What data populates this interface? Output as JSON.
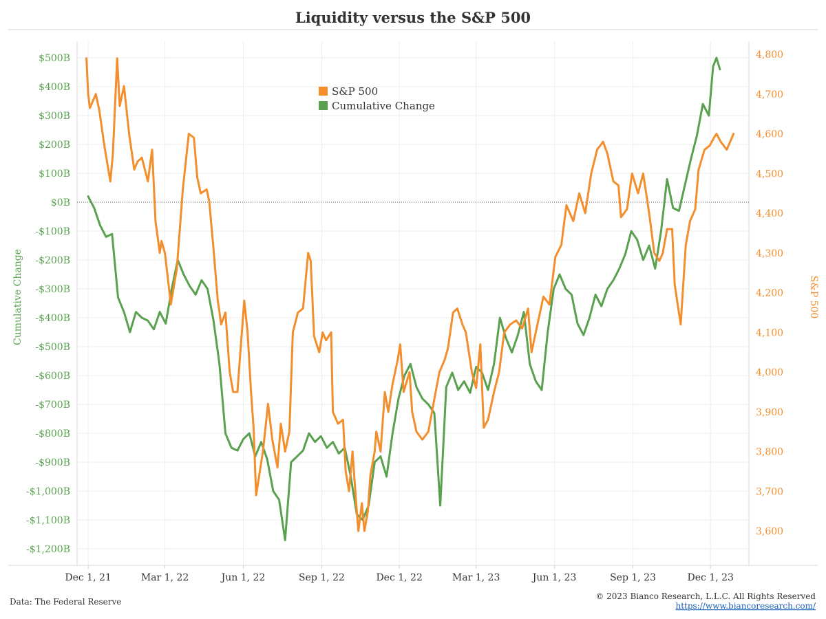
{
  "chart_data": {
    "type": "line",
    "title": "Liquidity versus the S&P 500",
    "left_axis": {
      "label": "Cumulative Change",
      "range": [
        -1200,
        500
      ],
      "ticks": [
        500,
        400,
        300,
        200,
        100,
        0,
        -100,
        -200,
        -300,
        -400,
        -500,
        -600,
        -700,
        -800,
        -900,
        -1000,
        -1100,
        -1200
      ],
      "tick_labels": [
        "$500B",
        "$400B",
        "$300B",
        "$200B",
        "$100B",
        "$0B",
        "-$100B",
        "-$200B",
        "-$300B",
        "-$400B",
        "-$500B",
        "-$600B",
        "-$700B",
        "-$800B",
        "-$900B",
        "-$1,000B",
        "-$1,100B",
        "-$1,200B"
      ],
      "color": "#59a14f"
    },
    "right_axis": {
      "label": "S&P 500",
      "range": [
        3600,
        4800
      ],
      "ticks": [
        4800,
        4700,
        4600,
        4500,
        4400,
        4300,
        4200,
        4100,
        4000,
        3900,
        3800,
        3700,
        3600
      ],
      "tick_labels": [
        "4,800",
        "4,700",
        "4,600",
        "4,500",
        "4,400",
        "4,300",
        "4,200",
        "4,100",
        "4,000",
        "3,900",
        "3,800",
        "3,700",
        "3,600"
      ],
      "color": "#f28e2b"
    },
    "x_axis": {
      "range": [
        "2021-11-18",
        "2024-01-15"
      ],
      "ticks": [
        "2021-12-01",
        "2022-03-01",
        "2022-06-01",
        "2022-09-01",
        "2022-12-01",
        "2023-03-01",
        "2023-06-01",
        "2023-09-01",
        "2023-12-01"
      ],
      "tick_labels": [
        "Dec 1, 21",
        "Mar 1, 22",
        "Jun 1, 22",
        "Sep 1, 22",
        "Dec 1, 22",
        "Mar 1, 23",
        "Jun 1, 23",
        "Sep 1, 23",
        "Dec 1, 23"
      ]
    },
    "zero_line": true,
    "grid": true,
    "legend_position": "top-center",
    "series": [
      {
        "name": "S&P 500",
        "axis": "right",
        "color": "#f28e2b",
        "points": [
          [
            "2021-11-29",
            4790
          ],
          [
            "2021-12-01",
            4700
          ],
          [
            "2021-12-03",
            4665
          ],
          [
            "2021-12-08",
            4690
          ],
          [
            "2021-12-10",
            4700
          ],
          [
            "2021-12-14",
            4660
          ],
          [
            "2021-12-20",
            4570
          ],
          [
            "2021-12-27",
            4480
          ],
          [
            "2021-12-30",
            4550
          ],
          [
            "2022-01-04",
            4790
          ],
          [
            "2022-01-07",
            4670
          ],
          [
            "2022-01-12",
            4720
          ],
          [
            "2022-01-18",
            4600
          ],
          [
            "2022-01-24",
            4510
          ],
          [
            "2022-01-28",
            4530
          ],
          [
            "2022-02-02",
            4540
          ],
          [
            "2022-02-09",
            4480
          ],
          [
            "2022-02-14",
            4560
          ],
          [
            "2022-02-18",
            4380
          ],
          [
            "2022-02-23",
            4300
          ],
          [
            "2022-02-25",
            4330
          ],
          [
            "2022-03-01",
            4300
          ],
          [
            "2022-03-08",
            4170
          ],
          [
            "2022-03-15",
            4260
          ],
          [
            "2022-03-22",
            4460
          ],
          [
            "2022-03-29",
            4600
          ],
          [
            "2022-04-04",
            4590
          ],
          [
            "2022-04-08",
            4490
          ],
          [
            "2022-04-12",
            4450
          ],
          [
            "2022-04-19",
            4460
          ],
          [
            "2022-04-22",
            4430
          ],
          [
            "2022-04-27",
            4310
          ],
          [
            "2022-05-02",
            4180
          ],
          [
            "2022-05-06",
            4120
          ],
          [
            "2022-05-11",
            4150
          ],
          [
            "2022-05-16",
            4000
          ],
          [
            "2022-05-20",
            3950
          ],
          [
            "2022-05-25",
            3950
          ],
          [
            "2022-06-02",
            4180
          ],
          [
            "2022-06-06",
            4100
          ],
          [
            "2022-06-10",
            3950
          ],
          [
            "2022-06-13",
            3860
          ],
          [
            "2022-06-16",
            3690
          ],
          [
            "2022-06-24",
            3800
          ],
          [
            "2022-06-30",
            3920
          ],
          [
            "2022-07-05",
            3830
          ],
          [
            "2022-07-11",
            3760
          ],
          [
            "2022-07-15",
            3870
          ],
          [
            "2022-07-20",
            3800
          ],
          [
            "2022-07-25",
            3850
          ],
          [
            "2022-07-29",
            4100
          ],
          [
            "2022-08-04",
            4150
          ],
          [
            "2022-08-10",
            4160
          ],
          [
            "2022-08-16",
            4300
          ],
          [
            "2022-08-19",
            4280
          ],
          [
            "2022-08-23",
            4090
          ],
          [
            "2022-08-29",
            4050
          ],
          [
            "2022-09-02",
            4100
          ],
          [
            "2022-09-06",
            4080
          ],
          [
            "2022-09-12",
            4100
          ],
          [
            "2022-09-14",
            3900
          ],
          [
            "2022-09-20",
            3870
          ],
          [
            "2022-09-26",
            3880
          ],
          [
            "2022-09-29",
            3750
          ],
          [
            "2022-10-03",
            3700
          ],
          [
            "2022-10-07",
            3800
          ],
          [
            "2022-10-12",
            3650
          ],
          [
            "2022-10-14",
            3600
          ],
          [
            "2022-10-18",
            3670
          ],
          [
            "2022-10-21",
            3600
          ],
          [
            "2022-10-25",
            3650
          ],
          [
            "2022-10-28",
            3740
          ],
          [
            "2022-11-02",
            3800
          ],
          [
            "2022-11-04",
            3850
          ],
          [
            "2022-11-09",
            3800
          ],
          [
            "2022-11-14",
            3950
          ],
          [
            "2022-11-18",
            3900
          ],
          [
            "2022-11-23",
            3970
          ],
          [
            "2022-11-29",
            4030
          ],
          [
            "2022-12-02",
            4070
          ],
          [
            "2022-12-06",
            3950
          ],
          [
            "2022-12-13",
            4000
          ],
          [
            "2022-12-16",
            3900
          ],
          [
            "2022-12-21",
            3850
          ],
          [
            "2022-12-28",
            3830
          ],
          [
            "2023-01-04",
            3850
          ],
          [
            "2023-01-10",
            3920
          ],
          [
            "2023-01-17",
            4000
          ],
          [
            "2023-01-23",
            4030
          ],
          [
            "2023-01-27",
            4060
          ],
          [
            "2023-02-02",
            4150
          ],
          [
            "2023-02-07",
            4160
          ],
          [
            "2023-02-13",
            4120
          ],
          [
            "2023-02-17",
            4100
          ],
          [
            "2023-02-24",
            4000
          ],
          [
            "2023-03-01",
            3960
          ],
          [
            "2023-03-06",
            4070
          ],
          [
            "2023-03-10",
            3860
          ],
          [
            "2023-03-15",
            3880
          ],
          [
            "2023-03-22",
            3950
          ],
          [
            "2023-03-28",
            4000
          ],
          [
            "2023-04-03",
            4100
          ],
          [
            "2023-04-10",
            4120
          ],
          [
            "2023-04-17",
            4130
          ],
          [
            "2023-04-24",
            4110
          ],
          [
            "2023-05-01",
            4160
          ],
          [
            "2023-05-05",
            4050
          ],
          [
            "2023-05-12",
            4120
          ],
          [
            "2023-05-19",
            4190
          ],
          [
            "2023-05-26",
            4170
          ],
          [
            "2023-06-02",
            4290
          ],
          [
            "2023-06-09",
            4320
          ],
          [
            "2023-06-15",
            4420
          ],
          [
            "2023-06-23",
            4380
          ],
          [
            "2023-06-30",
            4450
          ],
          [
            "2023-07-07",
            4400
          ],
          [
            "2023-07-14",
            4500
          ],
          [
            "2023-07-21",
            4560
          ],
          [
            "2023-07-28",
            4580
          ],
          [
            "2023-08-02",
            4550
          ],
          [
            "2023-08-09",
            4480
          ],
          [
            "2023-08-15",
            4470
          ],
          [
            "2023-08-18",
            4390
          ],
          [
            "2023-08-25",
            4410
          ],
          [
            "2023-08-31",
            4500
          ],
          [
            "2023-09-07",
            4450
          ],
          [
            "2023-09-13",
            4500
          ],
          [
            "2023-09-20",
            4400
          ],
          [
            "2023-09-26",
            4300
          ],
          [
            "2023-10-02",
            4280
          ],
          [
            "2023-10-06",
            4300
          ],
          [
            "2023-10-11",
            4360
          ],
          [
            "2023-10-17",
            4360
          ],
          [
            "2023-10-20",
            4220
          ],
          [
            "2023-10-27",
            4120
          ],
          [
            "2023-11-02",
            4320
          ],
          [
            "2023-11-07",
            4380
          ],
          [
            "2023-11-13",
            4410
          ],
          [
            "2023-11-17",
            4510
          ],
          [
            "2023-11-24",
            4560
          ],
          [
            "2023-11-30",
            4570
          ],
          [
            "2023-12-05",
            4590
          ],
          [
            "2023-12-08",
            4600
          ],
          [
            "2023-12-13",
            4580
          ],
          [
            "2023-12-20",
            4560
          ],
          [
            "2023-12-28",
            4600
          ]
        ]
      },
      {
        "name": "Cumulative Change",
        "axis": "left",
        "color": "#59a14f",
        "points": [
          [
            "2021-12-01",
            20
          ],
          [
            "2021-12-08",
            -20
          ],
          [
            "2021-12-15",
            -80
          ],
          [
            "2021-12-22",
            -120
          ],
          [
            "2021-12-29",
            -110
          ],
          [
            "2022-01-05",
            -330
          ],
          [
            "2022-01-12",
            -380
          ],
          [
            "2022-01-19",
            -450
          ],
          [
            "2022-01-26",
            -380
          ],
          [
            "2022-02-02",
            -400
          ],
          [
            "2022-02-09",
            -410
          ],
          [
            "2022-02-16",
            -440
          ],
          [
            "2022-02-23",
            -380
          ],
          [
            "2022-03-02",
            -420
          ],
          [
            "2022-03-09",
            -300
          ],
          [
            "2022-03-16",
            -200
          ],
          [
            "2022-03-23",
            -250
          ],
          [
            "2022-03-30",
            -290
          ],
          [
            "2022-04-06",
            -320
          ],
          [
            "2022-04-13",
            -270
          ],
          [
            "2022-04-20",
            -300
          ],
          [
            "2022-04-27",
            -410
          ],
          [
            "2022-05-04",
            -560
          ],
          [
            "2022-05-11",
            -800
          ],
          [
            "2022-05-18",
            -850
          ],
          [
            "2022-05-25",
            -860
          ],
          [
            "2022-06-01",
            -820
          ],
          [
            "2022-06-08",
            -800
          ],
          [
            "2022-06-15",
            -880
          ],
          [
            "2022-06-22",
            -830
          ],
          [
            "2022-06-29",
            -890
          ],
          [
            "2022-07-06",
            -1000
          ],
          [
            "2022-07-13",
            -1030
          ],
          [
            "2022-07-20",
            -1170
          ],
          [
            "2022-07-27",
            -900
          ],
          [
            "2022-08-03",
            -880
          ],
          [
            "2022-08-10",
            -860
          ],
          [
            "2022-08-17",
            -800
          ],
          [
            "2022-08-24",
            -830
          ],
          [
            "2022-08-31",
            -810
          ],
          [
            "2022-09-07",
            -850
          ],
          [
            "2022-09-14",
            -830
          ],
          [
            "2022-09-21",
            -870
          ],
          [
            "2022-09-28",
            -850
          ],
          [
            "2022-10-05",
            -950
          ],
          [
            "2022-10-12",
            -1080
          ],
          [
            "2022-10-19",
            -1100
          ],
          [
            "2022-10-26",
            -1050
          ],
          [
            "2022-11-02",
            -900
          ],
          [
            "2022-11-09",
            -880
          ],
          [
            "2022-11-16",
            -950
          ],
          [
            "2022-11-23",
            -800
          ],
          [
            "2022-11-30",
            -680
          ],
          [
            "2022-12-07",
            -600
          ],
          [
            "2022-12-14",
            -560
          ],
          [
            "2022-12-21",
            -640
          ],
          [
            "2022-12-28",
            -680
          ],
          [
            "2023-01-04",
            -700
          ],
          [
            "2023-01-11",
            -730
          ],
          [
            "2023-01-18",
            -1050
          ],
          [
            "2023-01-25",
            -640
          ],
          [
            "2023-02-01",
            -590
          ],
          [
            "2023-02-08",
            -650
          ],
          [
            "2023-02-15",
            -620
          ],
          [
            "2023-02-22",
            -660
          ],
          [
            "2023-03-01",
            -570
          ],
          [
            "2023-03-08",
            -590
          ],
          [
            "2023-03-15",
            -650
          ],
          [
            "2023-03-22",
            -560
          ],
          [
            "2023-03-29",
            -400
          ],
          [
            "2023-04-05",
            -470
          ],
          [
            "2023-04-12",
            -520
          ],
          [
            "2023-04-19",
            -460
          ],
          [
            "2023-04-26",
            -380
          ],
          [
            "2023-05-03",
            -560
          ],
          [
            "2023-05-10",
            -620
          ],
          [
            "2023-05-17",
            -650
          ],
          [
            "2023-05-24",
            -450
          ],
          [
            "2023-05-31",
            -300
          ],
          [
            "2023-06-07",
            -250
          ],
          [
            "2023-06-14",
            -300
          ],
          [
            "2023-06-21",
            -320
          ],
          [
            "2023-06-28",
            -420
          ],
          [
            "2023-07-05",
            -460
          ],
          [
            "2023-07-12",
            -400
          ],
          [
            "2023-07-19",
            -320
          ],
          [
            "2023-07-26",
            -360
          ],
          [
            "2023-08-02",
            -300
          ],
          [
            "2023-08-09",
            -270
          ],
          [
            "2023-08-16",
            -230
          ],
          [
            "2023-08-23",
            -180
          ],
          [
            "2023-08-30",
            -100
          ],
          [
            "2023-09-06",
            -130
          ],
          [
            "2023-09-13",
            -200
          ],
          [
            "2023-09-20",
            -150
          ],
          [
            "2023-09-27",
            -230
          ],
          [
            "2023-10-04",
            -100
          ],
          [
            "2023-10-11",
            80
          ],
          [
            "2023-10-18",
            -20
          ],
          [
            "2023-10-25",
            -30
          ],
          [
            "2023-11-01",
            60
          ],
          [
            "2023-11-08",
            150
          ],
          [
            "2023-11-15",
            230
          ],
          [
            "2023-11-22",
            340
          ],
          [
            "2023-11-29",
            300
          ],
          [
            "2023-12-04",
            470
          ],
          [
            "2023-12-08",
            500
          ],
          [
            "2023-12-12",
            460
          ]
        ]
      }
    ]
  },
  "footer": {
    "source": "Data: The Federal Reserve",
    "copyright": "© 2023 Bianco Research, L.L.C. All Rights Reserved",
    "url": "https://www.biancoresearch.com/"
  }
}
